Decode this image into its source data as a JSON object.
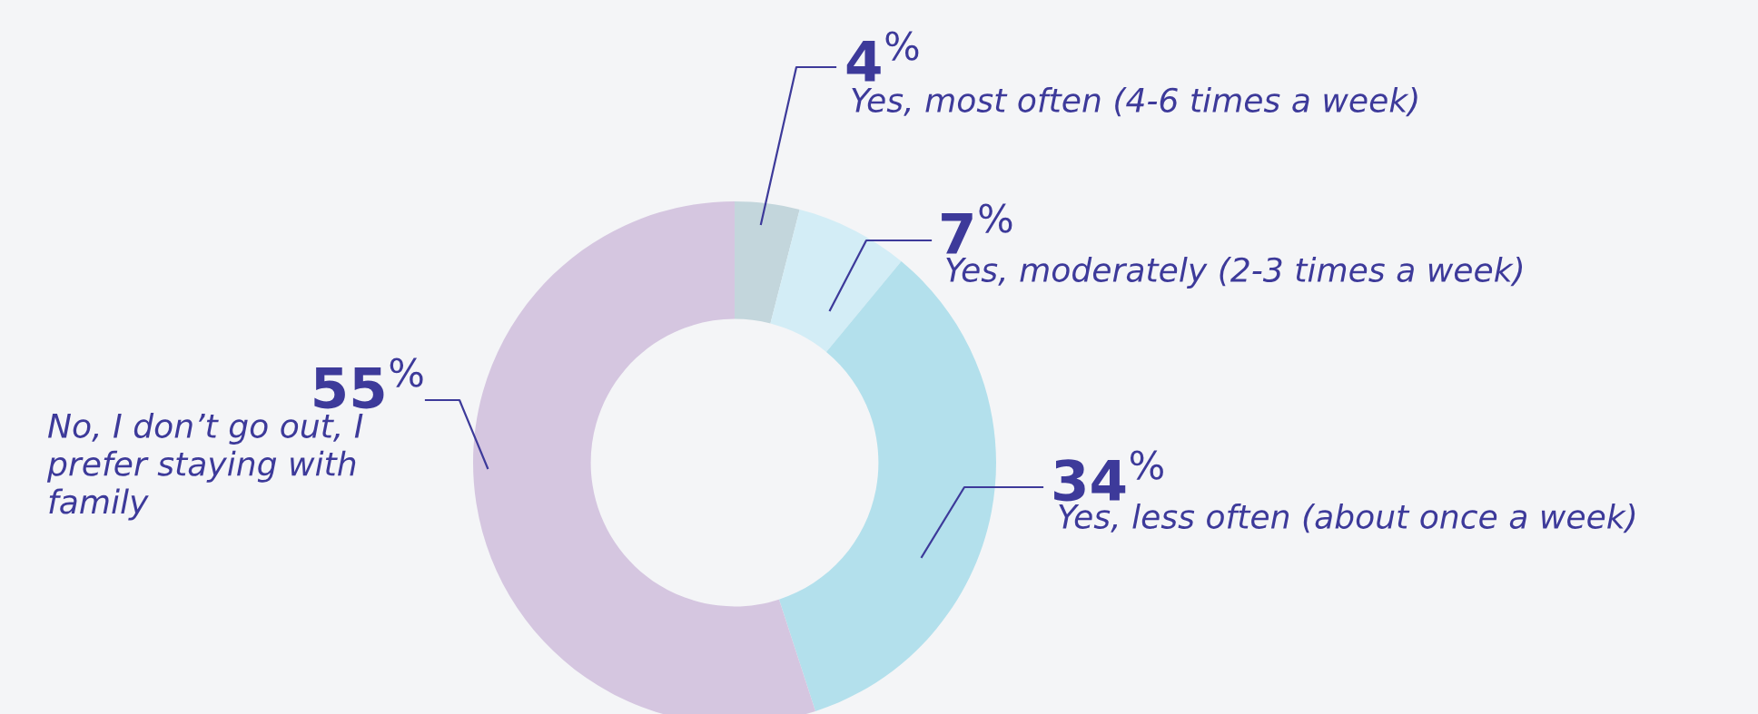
{
  "chart_data": {
    "type": "donut",
    "categories": [
      "Yes, most often (4-6 times a week)",
      "Yes, moderately (2-3 times a week)",
      "Yes, less often (about once a week)",
      "No, I don’t go out, I\nprefer staying with\nfamily"
    ],
    "values": [
      4,
      7,
      34,
      55
    ],
    "colors": [
      "#c3d6dc",
      "#d3edf6",
      "#b3e0ec",
      "#d5c6e0"
    ],
    "value_labels": [
      "4$^{%}$",
      "7$^{%}$",
      "34$^{%}$",
      "55$^{%}$"
    ]
  }
}
